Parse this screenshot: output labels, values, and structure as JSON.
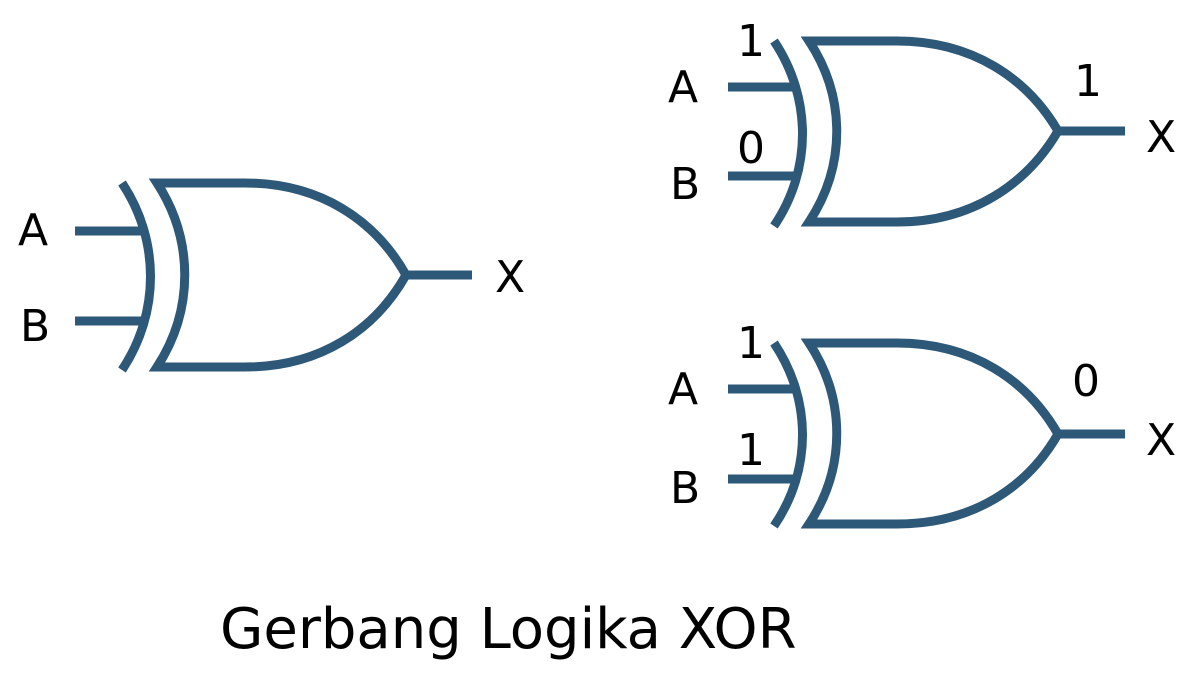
{
  "colors": {
    "stroke": "#2d5878",
    "text": "#000000",
    "background": "#ffffff"
  },
  "caption": "Gerbang Logika XOR",
  "gates": [
    {
      "type": "XOR",
      "input_a": "A",
      "input_b": "B",
      "output": "X",
      "a_value": "",
      "b_value": "",
      "out_value": ""
    },
    {
      "type": "XOR",
      "input_a": "A",
      "input_b": "B",
      "output": "X",
      "a_value": "1",
      "b_value": "0",
      "out_value": "1"
    },
    {
      "type": "XOR",
      "input_a": "A",
      "input_b": "B",
      "output": "X",
      "a_value": "1",
      "b_value": "1",
      "out_value": "0"
    }
  ]
}
